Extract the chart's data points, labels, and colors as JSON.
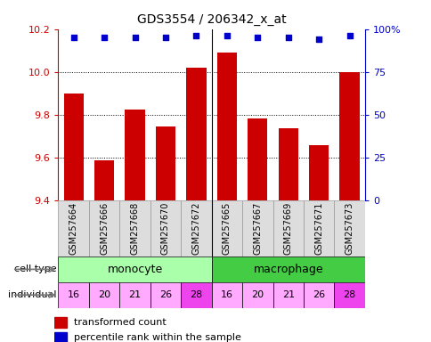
{
  "title": "GDS3554 / 206342_x_at",
  "samples": [
    "GSM257664",
    "GSM257666",
    "GSM257668",
    "GSM257670",
    "GSM257672",
    "GSM257665",
    "GSM257667",
    "GSM257669",
    "GSM257671",
    "GSM257673"
  ],
  "bar_values": [
    9.9,
    9.585,
    9.825,
    9.745,
    10.02,
    10.09,
    9.78,
    9.735,
    9.655,
    10.0
  ],
  "percentile_values": [
    95,
    95,
    95,
    95,
    96,
    96,
    95,
    95,
    94,
    96
  ],
  "ylim": [
    9.4,
    10.2
  ],
  "yticks": [
    9.4,
    9.6,
    9.8,
    10.0,
    10.2
  ],
  "right_yticks": [
    0,
    25,
    50,
    75,
    100
  ],
  "bar_color": "#cc0000",
  "dot_color": "#0000cc",
  "monocyte_color": "#aaffaa",
  "macrophage_color": "#44cc44",
  "individuals": [
    16,
    20,
    21,
    26,
    28,
    16,
    20,
    21,
    26,
    28
  ],
  "individual_colors": [
    "#ffaaff",
    "#ffaaff",
    "#ffaaff",
    "#ffaaff",
    "#ee44ee",
    "#ffaaff",
    "#ffaaff",
    "#ffaaff",
    "#ffaaff",
    "#ee44ee"
  ],
  "label_color_red": "#cc0000",
  "label_color_blue": "#0000cc",
  "legend_red_label": "transformed count",
  "legend_blue_label": "percentile rank within the sample",
  "cell_type_row_label": "cell type",
  "individual_row_label": "individual",
  "sample_bg_color": "#dddddd"
}
